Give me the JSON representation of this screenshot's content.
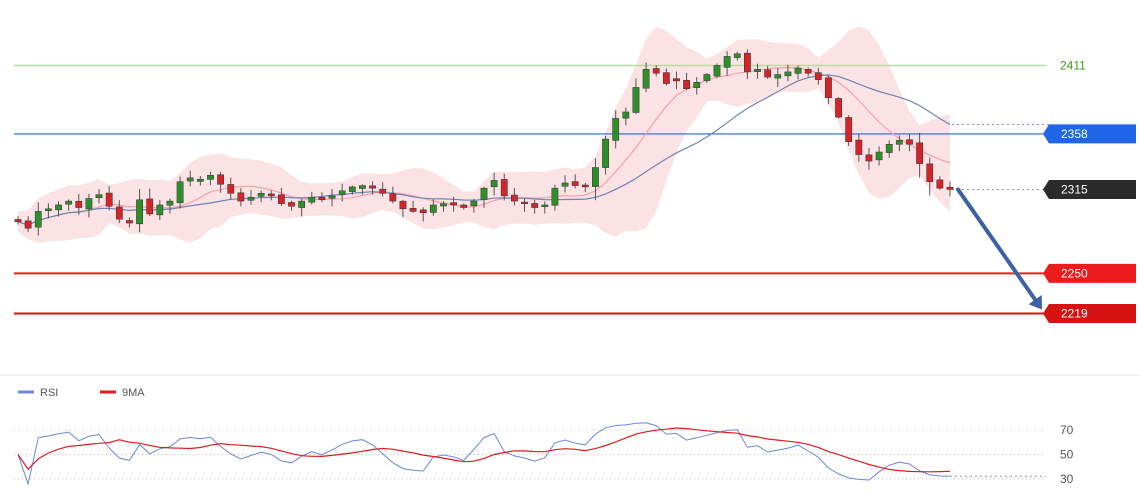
{
  "chart_data": [
    {
      "type": "candlestick",
      "panel": "price",
      "price_range": [
        2200,
        2440
      ],
      "price_path": [
        2290,
        2285,
        2298,
        2300,
        2303,
        2306,
        2301,
        2308,
        2311,
        2302,
        2292,
        2289,
        2307,
        2296,
        2303,
        2306,
        2321,
        2324,
        2323,
        2326,
        2319,
        2312,
        2306,
        2309,
        2312,
        2310,
        2304,
        2302,
        2306,
        2309,
        2307,
        2310,
        2314,
        2317,
        2318,
        2316,
        2312,
        2306,
        2300,
        2298,
        2297,
        2303,
        2304,
        2303,
        2301,
        2306,
        2316,
        2322,
        2310,
        2306,
        2304,
        2301,
        2303,
        2316,
        2320,
        2318,
        2317,
        2332,
        2354,
        2370,
        2375,
        2394,
        2408,
        2405,
        2397,
        2399,
        2393,
        2398,
        2404,
        2411,
        2418,
        2420,
        2406,
        2408,
        2402,
        2404,
        2406,
        2409,
        2405,
        2400,
        2386,
        2371,
        2352,
        2342,
        2337,
        2344,
        2350,
        2353,
        2350,
        2335,
        2321,
        2316,
        2315
      ],
      "bands": {
        "color": "#f2a0a8",
        "opacity": 0.3
      },
      "moving_averages": [
        {
          "color": "#f4a1a8"
        },
        {
          "color": "#6f83b4"
        }
      ],
      "levels": [
        {
          "value": 2411,
          "label": "2411",
          "color": "#3a9a1a",
          "style": "line-text",
          "line_color": "#b5dd9c"
        },
        {
          "value": 2358,
          "label": "2358",
          "color": "#1f66e6",
          "style": "tag"
        },
        {
          "value": 2315,
          "label": "2315",
          "color": "#2b2b2b",
          "style": "tag-dotted"
        },
        {
          "value": 2250,
          "label": "2250",
          "color": "#ea1c1c",
          "style": "tag"
        },
        {
          "value": 2219,
          "label": "2219",
          "color": "#d41212",
          "style": "tag"
        }
      ],
      "forecast_arrow": {
        "from_value": 2315,
        "to_value": 2219,
        "color": "#3d60a6"
      }
    },
    {
      "type": "line",
      "panel": "indicator",
      "ylim": [
        25,
        80
      ],
      "yticks": [
        70,
        50,
        30
      ],
      "legend": [
        {
          "name": "RSI",
          "color": "#6b87d6"
        },
        {
          "name": "9MA",
          "color": "#e21b1b"
        }
      ]
    }
  ]
}
